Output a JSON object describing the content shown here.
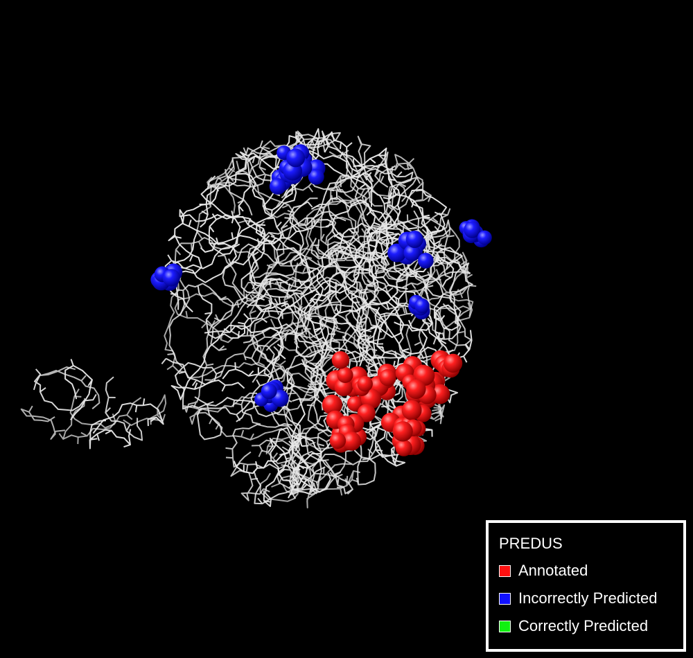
{
  "legend": {
    "title": "PREDUS",
    "items": [
      {
        "label": "Annotated",
        "color": "#ff1010"
      },
      {
        "label": "Incorrectly Predicted",
        "color": "#1010ff"
      },
      {
        "label": "Correctly Predicted",
        "color": "#10f010"
      }
    ]
  },
  "colors": {
    "background": "#000000",
    "backbone": "#e6e6e6",
    "annotated_sphere": "#ff1010",
    "predicted_sphere": "#1010ff"
  }
}
